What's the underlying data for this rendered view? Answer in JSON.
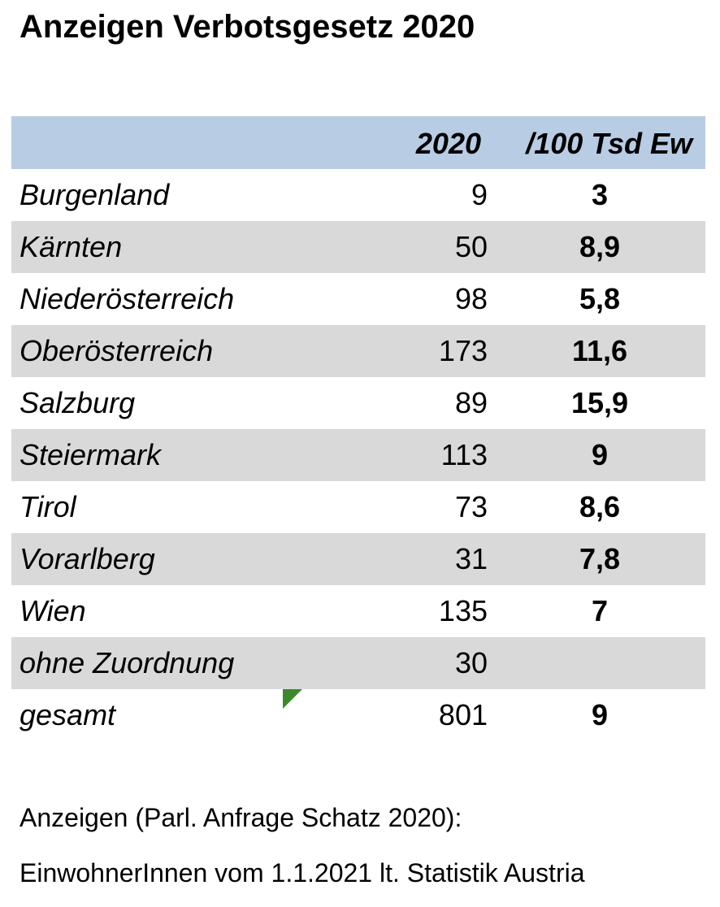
{
  "title": "Anzeigen Verbotsgesetz 2020",
  "header": {
    "col_year": "2020",
    "col_rate": "/100 Tsd Ew"
  },
  "rows": [
    {
      "region": "Burgenland",
      "count": "9",
      "rate": "3"
    },
    {
      "region": "Kärnten",
      "count": "50",
      "rate": "8,9"
    },
    {
      "region": "Niederösterreich",
      "count": "98",
      "rate": "5,8"
    },
    {
      "region": "Oberösterreich",
      "count": "173",
      "rate": "11,6"
    },
    {
      "region": "Salzburg",
      "count": "89",
      "rate": "15,9"
    },
    {
      "region": "Steiermark",
      "count": "113",
      "rate": "9"
    },
    {
      "region": "Tirol",
      "count": "73",
      "rate": "8,6"
    },
    {
      "region": "Vorarlberg",
      "count": "31",
      "rate": "7,8"
    },
    {
      "region": "Wien",
      "count": "135",
      "rate": "7"
    },
    {
      "region": "ohne Zuordnung",
      "count": "30",
      "rate": ""
    },
    {
      "region": "gesamt",
      "count": "801",
      "rate": "9"
    }
  ],
  "footnotes": {
    "line1": "Anzeigen (Parl. Anfrage Schatz 2020):",
    "line2": "EinwohnerInnen vom 1.1.2021 lt. Statistik Austria"
  },
  "colors": {
    "header_bg": "#b8cce4",
    "row_shade": "#d9d9d9",
    "comment_marker": "#3a8a2a"
  }
}
